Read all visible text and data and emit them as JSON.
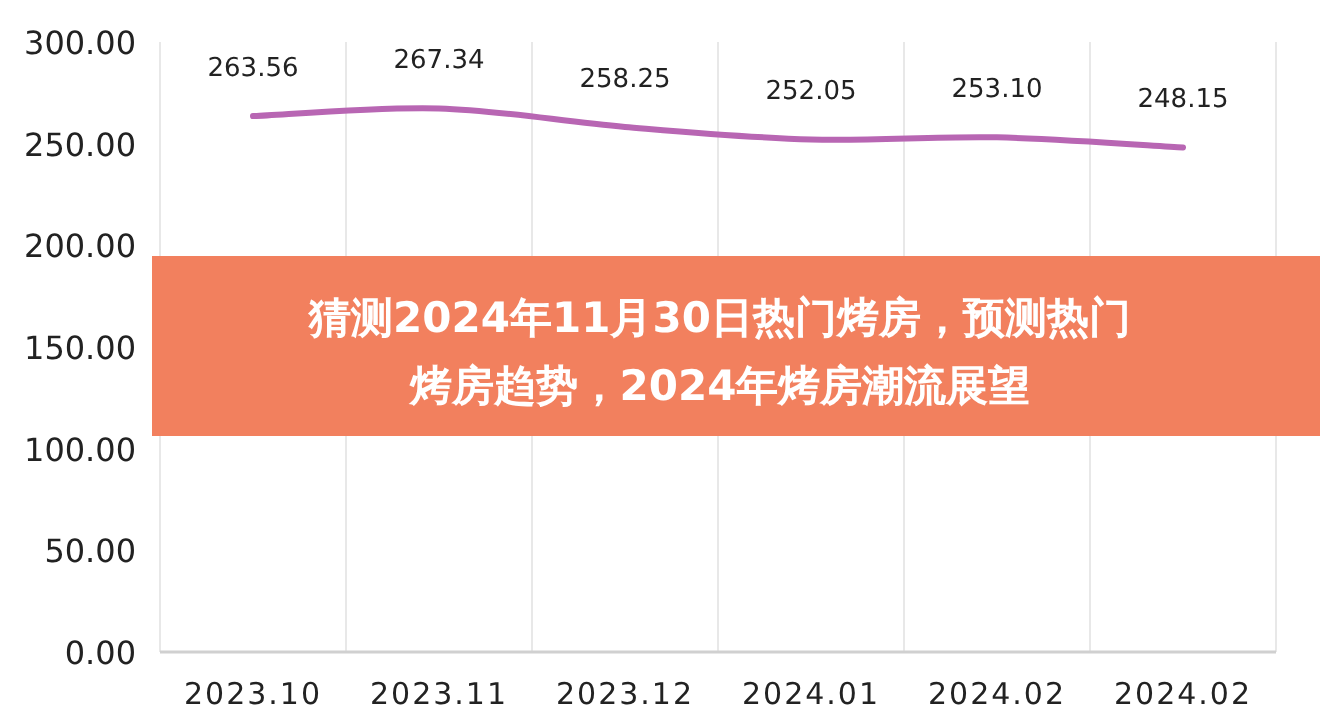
{
  "chart_data": {
    "type": "line",
    "title": "猜测2024年11月30日热门烤房，预测热门烤房趋势，2024年烤房潮流展望",
    "categories": [
      "2023.10",
      "2023.11",
      "2023.12",
      "2024.01",
      "2024.02",
      "2024.02"
    ],
    "series": [
      {
        "color": "#b866b3",
        "values": [
          263.56,
          267.34,
          258.25,
          252.05,
          253.1,
          248.15
        ],
        "value_labels": [
          "263.56",
          "267.34",
          "258.25",
          "252.05",
          "253.10",
          "248.15"
        ]
      }
    ],
    "ylim": [
      0,
      300
    ],
    "yticks": [
      {
        "value": 0,
        "label": "0.00"
      },
      {
        "value": 50,
        "label": "50.00"
      },
      {
        "value": 100,
        "label": "100.00"
      },
      {
        "value": 150,
        "label": "150.00"
      },
      {
        "value": 200,
        "label": "200.00"
      },
      {
        "value": 250,
        "label": "250.00"
      },
      {
        "value": 300,
        "label": "300.00"
      }
    ],
    "grid": "x",
    "marker": "none",
    "line_style": "solid"
  }
}
